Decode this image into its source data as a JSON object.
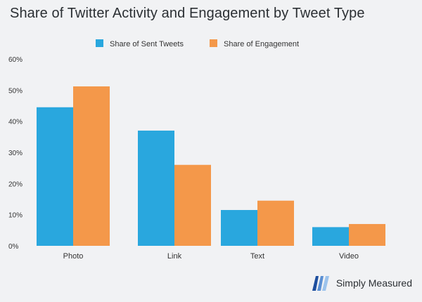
{
  "chart_data": {
    "type": "bar",
    "title": "Share of Twitter Activity and Engagement by Tweet Type",
    "categories": [
      "Photo",
      "Link",
      "Text",
      "Video"
    ],
    "series": [
      {
        "name": "Share of Sent Tweets",
        "color": "#29a7de",
        "values": [
          44.5,
          37,
          11.5,
          6
        ]
      },
      {
        "name": "Share of Engagement",
        "color": "#f4984a",
        "values": [
          51.2,
          26,
          14.5,
          7
        ]
      }
    ],
    "ylim": [
      0,
      60
    ],
    "yticks": [
      "0%",
      "10%",
      "20%",
      "30%",
      "40%",
      "50%",
      "60%"
    ],
    "ytick_values": [
      0,
      10,
      20,
      30,
      40,
      50,
      60
    ],
    "legend": "top-center",
    "grid": false
  },
  "brand": {
    "name": "Simply Measured",
    "icon": "simply-measured-logo-icon"
  }
}
